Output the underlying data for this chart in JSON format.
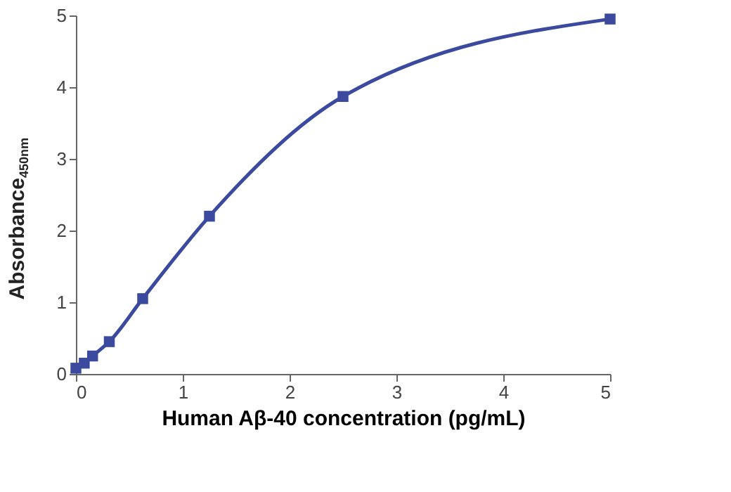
{
  "chart_data": {
    "type": "line",
    "xlabel": "Human Aβ-40 concentration (pg/mL)",
    "ylabel": "Absorbance$_{450nm}$",
    "x": [
      0,
      0.078,
      0.156,
      0.3125,
      0.625,
      1.25,
      2.5,
      5
    ],
    "series": [
      {
        "color": "#3b4a9e",
        "values": [
          0.08,
          0.15,
          0.25,
          0.45,
          1.05,
          2.2,
          3.87,
          4.95
        ]
      }
    ],
    "xlim": [
      0,
      5
    ],
    "xticks": [
      0,
      1,
      2,
      3,
      4,
      5
    ],
    "ylim": [
      0,
      5
    ],
    "yticks": [
      0,
      1,
      2,
      3,
      4,
      5
    ],
    "grid": false,
    "marker": "square",
    "line_style": "solid"
  }
}
